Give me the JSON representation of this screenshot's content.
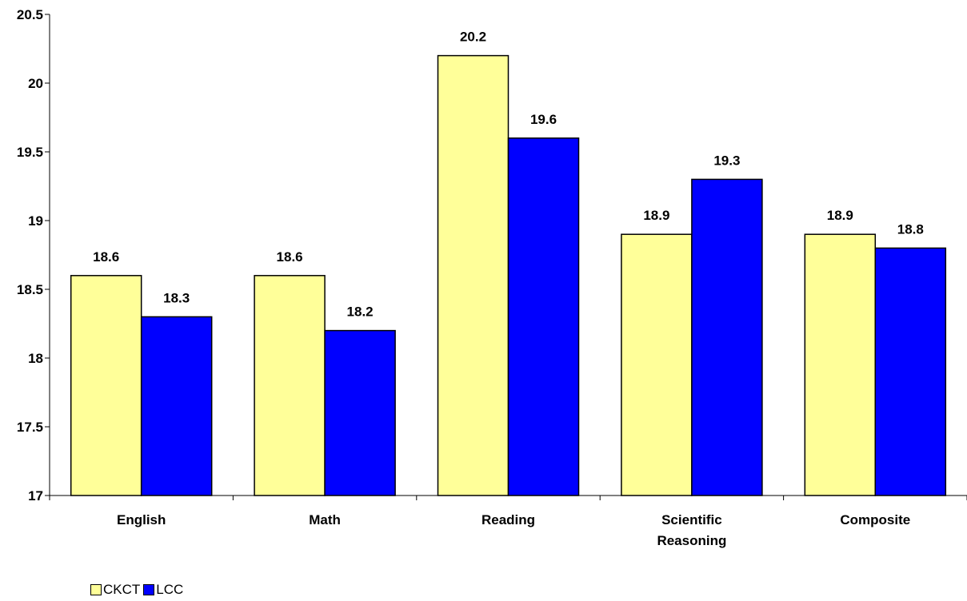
{
  "chart_data": {
    "type": "bar",
    "categories": [
      "English",
      "Math",
      "Reading",
      "Scientific Reasoning",
      "Composite"
    ],
    "category_lines": [
      [
        "English"
      ],
      [
        "Math"
      ],
      [
        "Reading"
      ],
      [
        "Scientific",
        "Reasoning"
      ],
      [
        "Composite"
      ]
    ],
    "series": [
      {
        "name": "CKCT",
        "values": [
          18.6,
          18.6,
          20.2,
          18.9,
          18.9
        ],
        "color": "#FFFF99"
      },
      {
        "name": "LCC",
        "values": [
          18.3,
          18.2,
          19.6,
          19.3,
          18.8
        ],
        "color": "#0000FF"
      }
    ],
    "value_labels": [
      [
        "18.6",
        "18.6",
        "20.2",
        "18.9",
        "18.9"
      ],
      [
        "18.3",
        "18.2",
        "19.6",
        "19.3",
        "18.8"
      ]
    ],
    "y_ticks": [
      17,
      17.5,
      18,
      18.5,
      19,
      19.5,
      20,
      20.5
    ],
    "y_tick_labels": [
      "17",
      "17.5",
      "18",
      "18.5",
      "19",
      "19.5",
      "20",
      "20.5"
    ],
    "ylim": [
      17,
      20.5
    ],
    "grid": false,
    "legend_position": "bottom-left",
    "title": "",
    "xlabel": "",
    "ylabel": ""
  }
}
